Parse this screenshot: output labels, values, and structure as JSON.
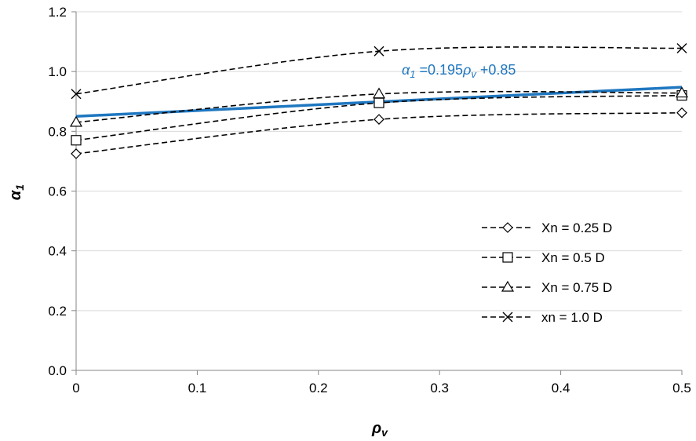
{
  "chart_data": {
    "type": "line",
    "title": "",
    "xlabel": "ρ",
    "xlabel_sub": "v",
    "ylabel": "α",
    "ylabel_sub": "1",
    "xlim": [
      0,
      0.5
    ],
    "ylim": [
      0,
      1.2
    ],
    "x_ticks": [
      "0",
      "0.1",
      "0.2",
      "0.3",
      "0.4",
      "0.5"
    ],
    "y_ticks": [
      "0.0",
      "0.2",
      "0.4",
      "0.6",
      "0.8",
      "1.0",
      "1.2"
    ],
    "grid": "horizontal",
    "legend_position": "lower-right",
    "x": [
      0,
      0.25,
      0.5
    ],
    "series": [
      {
        "name": "Xn = 0.25 D",
        "marker": "diamond",
        "style": "dashed",
        "color": "#000000",
        "values": [
          0.725,
          0.84,
          0.862
        ]
      },
      {
        "name": "Xn = 0.5 D",
        "marker": "square",
        "style": "dashed",
        "color": "#000000",
        "values": [
          0.77,
          0.895,
          0.92
        ]
      },
      {
        "name": "Xn = 0.75 D",
        "marker": "triangle",
        "style": "dashed",
        "color": "#000000",
        "values": [
          0.83,
          0.925,
          0.928
        ]
      },
      {
        "name": "xn = 1.0 D",
        "marker": "x",
        "style": "dashed",
        "color": "#000000",
        "values": [
          0.925,
          1.068,
          1.078
        ]
      }
    ],
    "fit_line": {
      "slope": 0.195,
      "intercept": 0.85,
      "color": "#1f77c0"
    },
    "annotation": {
      "alpha": "α",
      "alpha_sub": "1",
      "mid": " =0.195",
      "rho": "ρ",
      "rho_sub": "v",
      "end": " +0.85"
    }
  }
}
